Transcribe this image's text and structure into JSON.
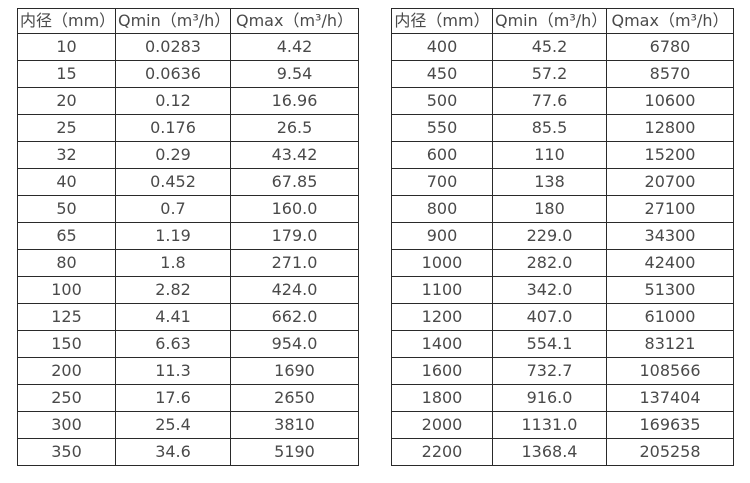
{
  "chart_data": [
    {
      "type": "table",
      "title": "",
      "columns": [
        "内径（mm）",
        "Qmin（m³/h）",
        "Qmax（m³/h）"
      ],
      "rows": [
        [
          "10",
          "0.0283",
          "4.42"
        ],
        [
          "15",
          "0.0636",
          "9.54"
        ],
        [
          "20",
          "0.12",
          "16.96"
        ],
        [
          "25",
          "0.176",
          "26.5"
        ],
        [
          "32",
          "0.29",
          "43.42"
        ],
        [
          "40",
          "0.452",
          "67.85"
        ],
        [
          "50",
          "0.7",
          "160.0"
        ],
        [
          "65",
          "1.19",
          "179.0"
        ],
        [
          "80",
          "1.8",
          "271.0"
        ],
        [
          "100",
          "2.82",
          "424.0"
        ],
        [
          "125",
          "4.41",
          "662.0"
        ],
        [
          "150",
          "6.63",
          "954.0"
        ],
        [
          "200",
          "11.3",
          "1690"
        ],
        [
          "250",
          "17.6",
          "2650"
        ],
        [
          "300",
          "25.4",
          "3810"
        ],
        [
          "350",
          "34.6",
          "5190"
        ]
      ]
    },
    {
      "type": "table",
      "title": "",
      "columns": [
        "内径（mm）",
        "Qmin（m³/h）",
        "Qmax（m³/h）"
      ],
      "rows": [
        [
          "400",
          "45.2",
          "6780"
        ],
        [
          "450",
          "57.2",
          "8570"
        ],
        [
          "500",
          "77.6",
          "10600"
        ],
        [
          "550",
          "85.5",
          "12800"
        ],
        [
          "600",
          "110",
          "15200"
        ],
        [
          "700",
          "138",
          "20700"
        ],
        [
          "800",
          "180",
          "27100"
        ],
        [
          "900",
          "229.0",
          "34300"
        ],
        [
          "1000",
          "282.0",
          "42400"
        ],
        [
          "1100",
          "342.0",
          "51300"
        ],
        [
          "1200",
          "407.0",
          "61000"
        ],
        [
          "1400",
          "554.1",
          "83121"
        ],
        [
          "1600",
          "732.7",
          "108566"
        ],
        [
          "1800",
          "916.0",
          "137404"
        ],
        [
          "2000",
          "1131.0",
          "169635"
        ],
        [
          "2200",
          "1368.4",
          "205258"
        ]
      ]
    }
  ],
  "colors": {
    "border": "#2a2a2a",
    "text": "#4a4a4a",
    "background": "#ffffff"
  }
}
